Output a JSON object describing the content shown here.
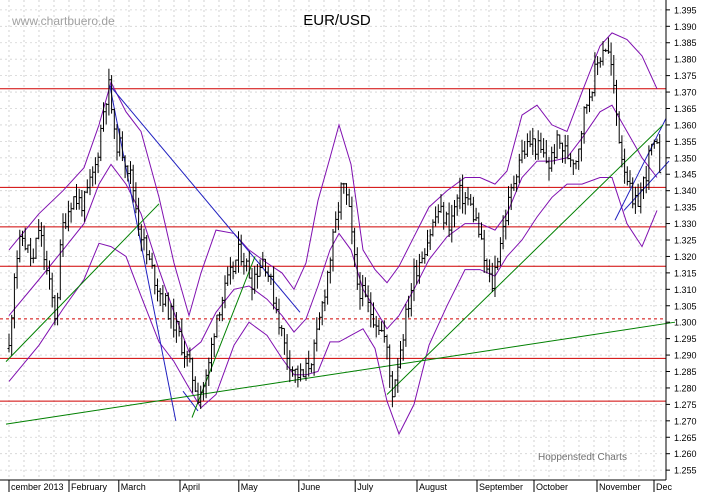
{
  "watermark": "www.chartbuero.de",
  "credit": "Hoppenstedt Charts",
  "chart_data": {
    "type": "candlestick",
    "title": "EUR/USD",
    "xlabel": "",
    "ylabel": "",
    "ylim": [
      1.252,
      1.398
    ],
    "grid": true,
    "y_ticks": [
      1.255,
      1.26,
      1.265,
      1.27,
      1.275,
      1.28,
      1.285,
      1.29,
      1.295,
      1.3,
      1.305,
      1.31,
      1.315,
      1.32,
      1.325,
      1.33,
      1.335,
      1.34,
      1.345,
      1.35,
      1.355,
      1.36,
      1.365,
      1.37,
      1.375,
      1.38,
      1.385,
      1.39,
      1.395
    ],
    "months": [
      {
        "label": "cember 2013",
        "t": 0.0
      },
      {
        "label": "February",
        "t": 1.0
      },
      {
        "label": "March",
        "t": 1.83
      },
      {
        "label": "April",
        "t": 2.85
      },
      {
        "label": "May",
        "t": 3.83
      },
      {
        "label": "June",
        "t": 4.83
      },
      {
        "label": "July",
        "t": 5.77
      },
      {
        "label": "August",
        "t": 6.8
      },
      {
        "label": "September",
        "t": 7.8
      },
      {
        "label": "October",
        "t": 8.75
      },
      {
        "label": "November",
        "t": 9.8
      },
      {
        "label": "Dec",
        "t": 10.75
      }
    ],
    "price_path": [
      [
        0.0,
        1.292
      ],
      [
        0.1,
        1.318
      ],
      [
        0.22,
        1.326
      ],
      [
        0.4,
        1.318
      ],
      [
        0.5,
        1.329
      ],
      [
        0.62,
        1.316
      ],
      [
        0.78,
        1.301
      ],
      [
        0.88,
        1.328
      ],
      [
        1.05,
        1.338
      ],
      [
        1.25,
        1.336
      ],
      [
        1.45,
        1.348
      ],
      [
        1.6,
        1.368
      ],
      [
        1.68,
        1.372
      ],
      [
        1.75,
        1.356
      ],
      [
        1.9,
        1.352
      ],
      [
        2.05,
        1.343
      ],
      [
        2.15,
        1.331
      ],
      [
        2.3,
        1.32
      ],
      [
        2.5,
        1.31
      ],
      [
        2.7,
        1.302
      ],
      [
        2.85,
        1.295
      ],
      [
        3.0,
        1.287
      ],
      [
        3.15,
        1.278
      ],
      [
        3.3,
        1.283
      ],
      [
        3.45,
        1.302
      ],
      [
        3.65,
        1.312
      ],
      [
        3.85,
        1.322
      ],
      [
        4.05,
        1.313
      ],
      [
        4.25,
        1.32
      ],
      [
        4.45,
        1.305
      ],
      [
        4.6,
        1.292
      ],
      [
        4.75,
        1.285
      ],
      [
        4.9,
        1.283
      ],
      [
        5.1,
        1.292
      ],
      [
        5.3,
        1.314
      ],
      [
        5.45,
        1.33
      ],
      [
        5.55,
        1.342
      ],
      [
        5.65,
        1.336
      ],
      [
        5.8,
        1.312
      ],
      [
        6.0,
        1.304
      ],
      [
        6.15,
        1.3
      ],
      [
        6.28,
        1.294
      ],
      [
        6.38,
        1.278
      ],
      [
        6.55,
        1.295
      ],
      [
        6.75,
        1.315
      ],
      [
        6.95,
        1.324
      ],
      [
        7.15,
        1.334
      ],
      [
        7.35,
        1.33
      ],
      [
        7.5,
        1.339
      ],
      [
        7.65,
        1.337
      ],
      [
        7.8,
        1.33
      ],
      [
        7.95,
        1.316
      ],
      [
        8.05,
        1.311
      ],
      [
        8.2,
        1.326
      ],
      [
        8.35,
        1.338
      ],
      [
        8.5,
        1.35
      ],
      [
        8.7,
        1.355
      ],
      [
        8.85,
        1.352
      ],
      [
        9.0,
        1.348
      ],
      [
        9.15,
        1.355
      ],
      [
        9.3,
        1.351
      ],
      [
        9.45,
        1.35
      ],
      [
        9.6,
        1.365
      ],
      [
        9.8,
        1.378
      ],
      [
        9.92,
        1.385
      ],
      [
        10.02,
        1.38
      ],
      [
        10.1,
        1.367
      ],
      [
        10.2,
        1.352
      ],
      [
        10.3,
        1.345
      ],
      [
        10.4,
        1.334
      ],
      [
        10.5,
        1.338
      ],
      [
        10.6,
        1.344
      ],
      [
        10.7,
        1.353
      ],
      [
        10.8,
        1.352
      ],
      [
        10.85,
        1.347
      ]
    ],
    "horizontal_levels": [
      1.371,
      1.341,
      1.329,
      1.317,
      1.289,
      1.276
    ],
    "dashed_level": 1.301,
    "trendlines": [
      {
        "color": "#2020c0",
        "points": [
          [
            1.68,
            1.372
          ],
          [
            4.85,
            1.303
          ]
        ]
      },
      {
        "color": "#2020c0",
        "points": [
          [
            1.68,
            1.372
          ],
          [
            2.78,
            1.27
          ]
        ]
      },
      {
        "color": "#2020c0",
        "points": [
          [
            2.9,
            1.279
          ],
          [
            3.15,
            1.273
          ]
        ]
      },
      {
        "color": "#2020c0",
        "points": [
          [
            10.1,
            1.331
          ],
          [
            10.95,
            1.362
          ]
        ]
      },
      {
        "color": "#2020c0",
        "points": [
          [
            10.25,
            1.334
          ],
          [
            11.0,
            1.349
          ]
        ]
      },
      {
        "color": "#008000",
        "points": [
          [
            -0.05,
            1.269
          ],
          [
            11.1,
            1.3
          ]
        ]
      },
      {
        "color": "#008000",
        "points": [
          [
            -0.05,
            1.288
          ],
          [
            2.5,
            1.336
          ]
        ]
      },
      {
        "color": "#008000",
        "points": [
          [
            3.05,
            1.271
          ],
          [
            4.1,
            1.32
          ]
        ]
      },
      {
        "color": "#008000",
        "points": [
          [
            6.3,
            1.278
          ],
          [
            10.9,
            1.36
          ]
        ]
      }
    ],
    "bollinger": {
      "color": "#8010b0",
      "upper": [
        [
          0.0,
          1.322
        ],
        [
          0.5,
          1.333
        ],
        [
          0.9,
          1.34
        ],
        [
          1.25,
          1.347
        ],
        [
          1.5,
          1.36
        ],
        [
          1.7,
          1.373
        ],
        [
          1.95,
          1.364
        ],
        [
          2.2,
          1.358
        ],
        [
          2.5,
          1.338
        ],
        [
          2.75,
          1.318
        ],
        [
          3.0,
          1.302
        ],
        [
          3.2,
          1.315
        ],
        [
          3.45,
          1.328
        ],
        [
          3.75,
          1.327
        ],
        [
          4.0,
          1.322
        ],
        [
          4.3,
          1.318
        ],
        [
          4.55,
          1.315
        ],
        [
          4.75,
          1.31
        ],
        [
          4.95,
          1.318
        ],
        [
          5.15,
          1.337
        ],
        [
          5.35,
          1.35
        ],
        [
          5.5,
          1.36
        ],
        [
          5.7,
          1.348
        ],
        [
          5.9,
          1.322
        ],
        [
          6.1,
          1.316
        ],
        [
          6.3,
          1.312
        ],
        [
          6.5,
          1.317
        ],
        [
          6.75,
          1.326
        ],
        [
          7.0,
          1.335
        ],
        [
          7.3,
          1.34
        ],
        [
          7.6,
          1.344
        ],
        [
          7.85,
          1.344
        ],
        [
          8.1,
          1.342
        ],
        [
          8.3,
          1.346
        ],
        [
          8.55,
          1.363
        ],
        [
          8.8,
          1.366
        ],
        [
          9.05,
          1.36
        ],
        [
          9.3,
          1.358
        ],
        [
          9.55,
          1.37
        ],
        [
          9.85,
          1.384
        ],
        [
          10.05,
          1.388
        ],
        [
          10.3,
          1.386
        ],
        [
          10.55,
          1.381
        ],
        [
          10.8,
          1.371
        ]
      ],
      "middle": [
        [
          0.0,
          1.302
        ],
        [
          0.5,
          1.313
        ],
        [
          0.9,
          1.322
        ],
        [
          1.25,
          1.33
        ],
        [
          1.5,
          1.342
        ],
        [
          1.7,
          1.348
        ],
        [
          1.95,
          1.342
        ],
        [
          2.2,
          1.333
        ],
        [
          2.5,
          1.316
        ],
        [
          2.75,
          1.303
        ],
        [
          3.0,
          1.291
        ],
        [
          3.2,
          1.294
        ],
        [
          3.45,
          1.303
        ],
        [
          3.75,
          1.31
        ],
        [
          4.0,
          1.311
        ],
        [
          4.3,
          1.307
        ],
        [
          4.55,
          1.302
        ],
        [
          4.75,
          1.297
        ],
        [
          4.95,
          1.301
        ],
        [
          5.15,
          1.311
        ],
        [
          5.35,
          1.322
        ],
        [
          5.5,
          1.327
        ],
        [
          5.7,
          1.322
        ],
        [
          5.9,
          1.31
        ],
        [
          6.1,
          1.304
        ],
        [
          6.3,
          1.298
        ],
        [
          6.5,
          1.302
        ],
        [
          6.75,
          1.31
        ],
        [
          7.0,
          1.319
        ],
        [
          7.3,
          1.326
        ],
        [
          7.6,
          1.33
        ],
        [
          7.85,
          1.33
        ],
        [
          8.1,
          1.328
        ],
        [
          8.3,
          1.333
        ],
        [
          8.55,
          1.344
        ],
        [
          8.8,
          1.349
        ],
        [
          9.05,
          1.349
        ],
        [
          9.3,
          1.35
        ],
        [
          9.55,
          1.356
        ],
        [
          9.85,
          1.364
        ],
        [
          10.05,
          1.366
        ],
        [
          10.3,
          1.358
        ],
        [
          10.55,
          1.35
        ],
        [
          10.8,
          1.344
        ]
      ],
      "lower": [
        [
          0.0,
          1.282
        ],
        [
          0.5,
          1.293
        ],
        [
          0.9,
          1.304
        ],
        [
          1.25,
          1.313
        ],
        [
          1.5,
          1.324
        ],
        [
          1.7,
          1.323
        ],
        [
          1.95,
          1.32
        ],
        [
          2.2,
          1.308
        ],
        [
          2.5,
          1.294
        ],
        [
          2.75,
          1.288
        ],
        [
          3.0,
          1.28
        ],
        [
          3.2,
          1.274
        ],
        [
          3.45,
          1.278
        ],
        [
          3.75,
          1.293
        ],
        [
          4.0,
          1.3
        ],
        [
          4.3,
          1.296
        ],
        [
          4.55,
          1.289
        ],
        [
          4.75,
          1.284
        ],
        [
          4.95,
          1.284
        ],
        [
          5.15,
          1.285
        ],
        [
          5.35,
          1.294
        ],
        [
          5.5,
          1.294
        ],
        [
          5.7,
          1.296
        ],
        [
          5.9,
          1.298
        ],
        [
          6.1,
          1.292
        ],
        [
          6.3,
          1.276
        ],
        [
          6.5,
          1.266
        ],
        [
          6.75,
          1.275
        ],
        [
          7.0,
          1.293
        ],
        [
          7.3,
          1.305
        ],
        [
          7.6,
          1.316
        ],
        [
          7.85,
          1.316
        ],
        [
          8.1,
          1.314
        ],
        [
          8.3,
          1.32
        ],
        [
          8.55,
          1.325
        ],
        [
          8.8,
          1.332
        ],
        [
          9.05,
          1.338
        ],
        [
          9.3,
          1.342
        ],
        [
          9.55,
          1.342
        ],
        [
          9.85,
          1.344
        ],
        [
          10.05,
          1.344
        ],
        [
          10.3,
          1.33
        ],
        [
          10.55,
          1.323
        ],
        [
          10.8,
          1.334
        ]
      ]
    }
  }
}
